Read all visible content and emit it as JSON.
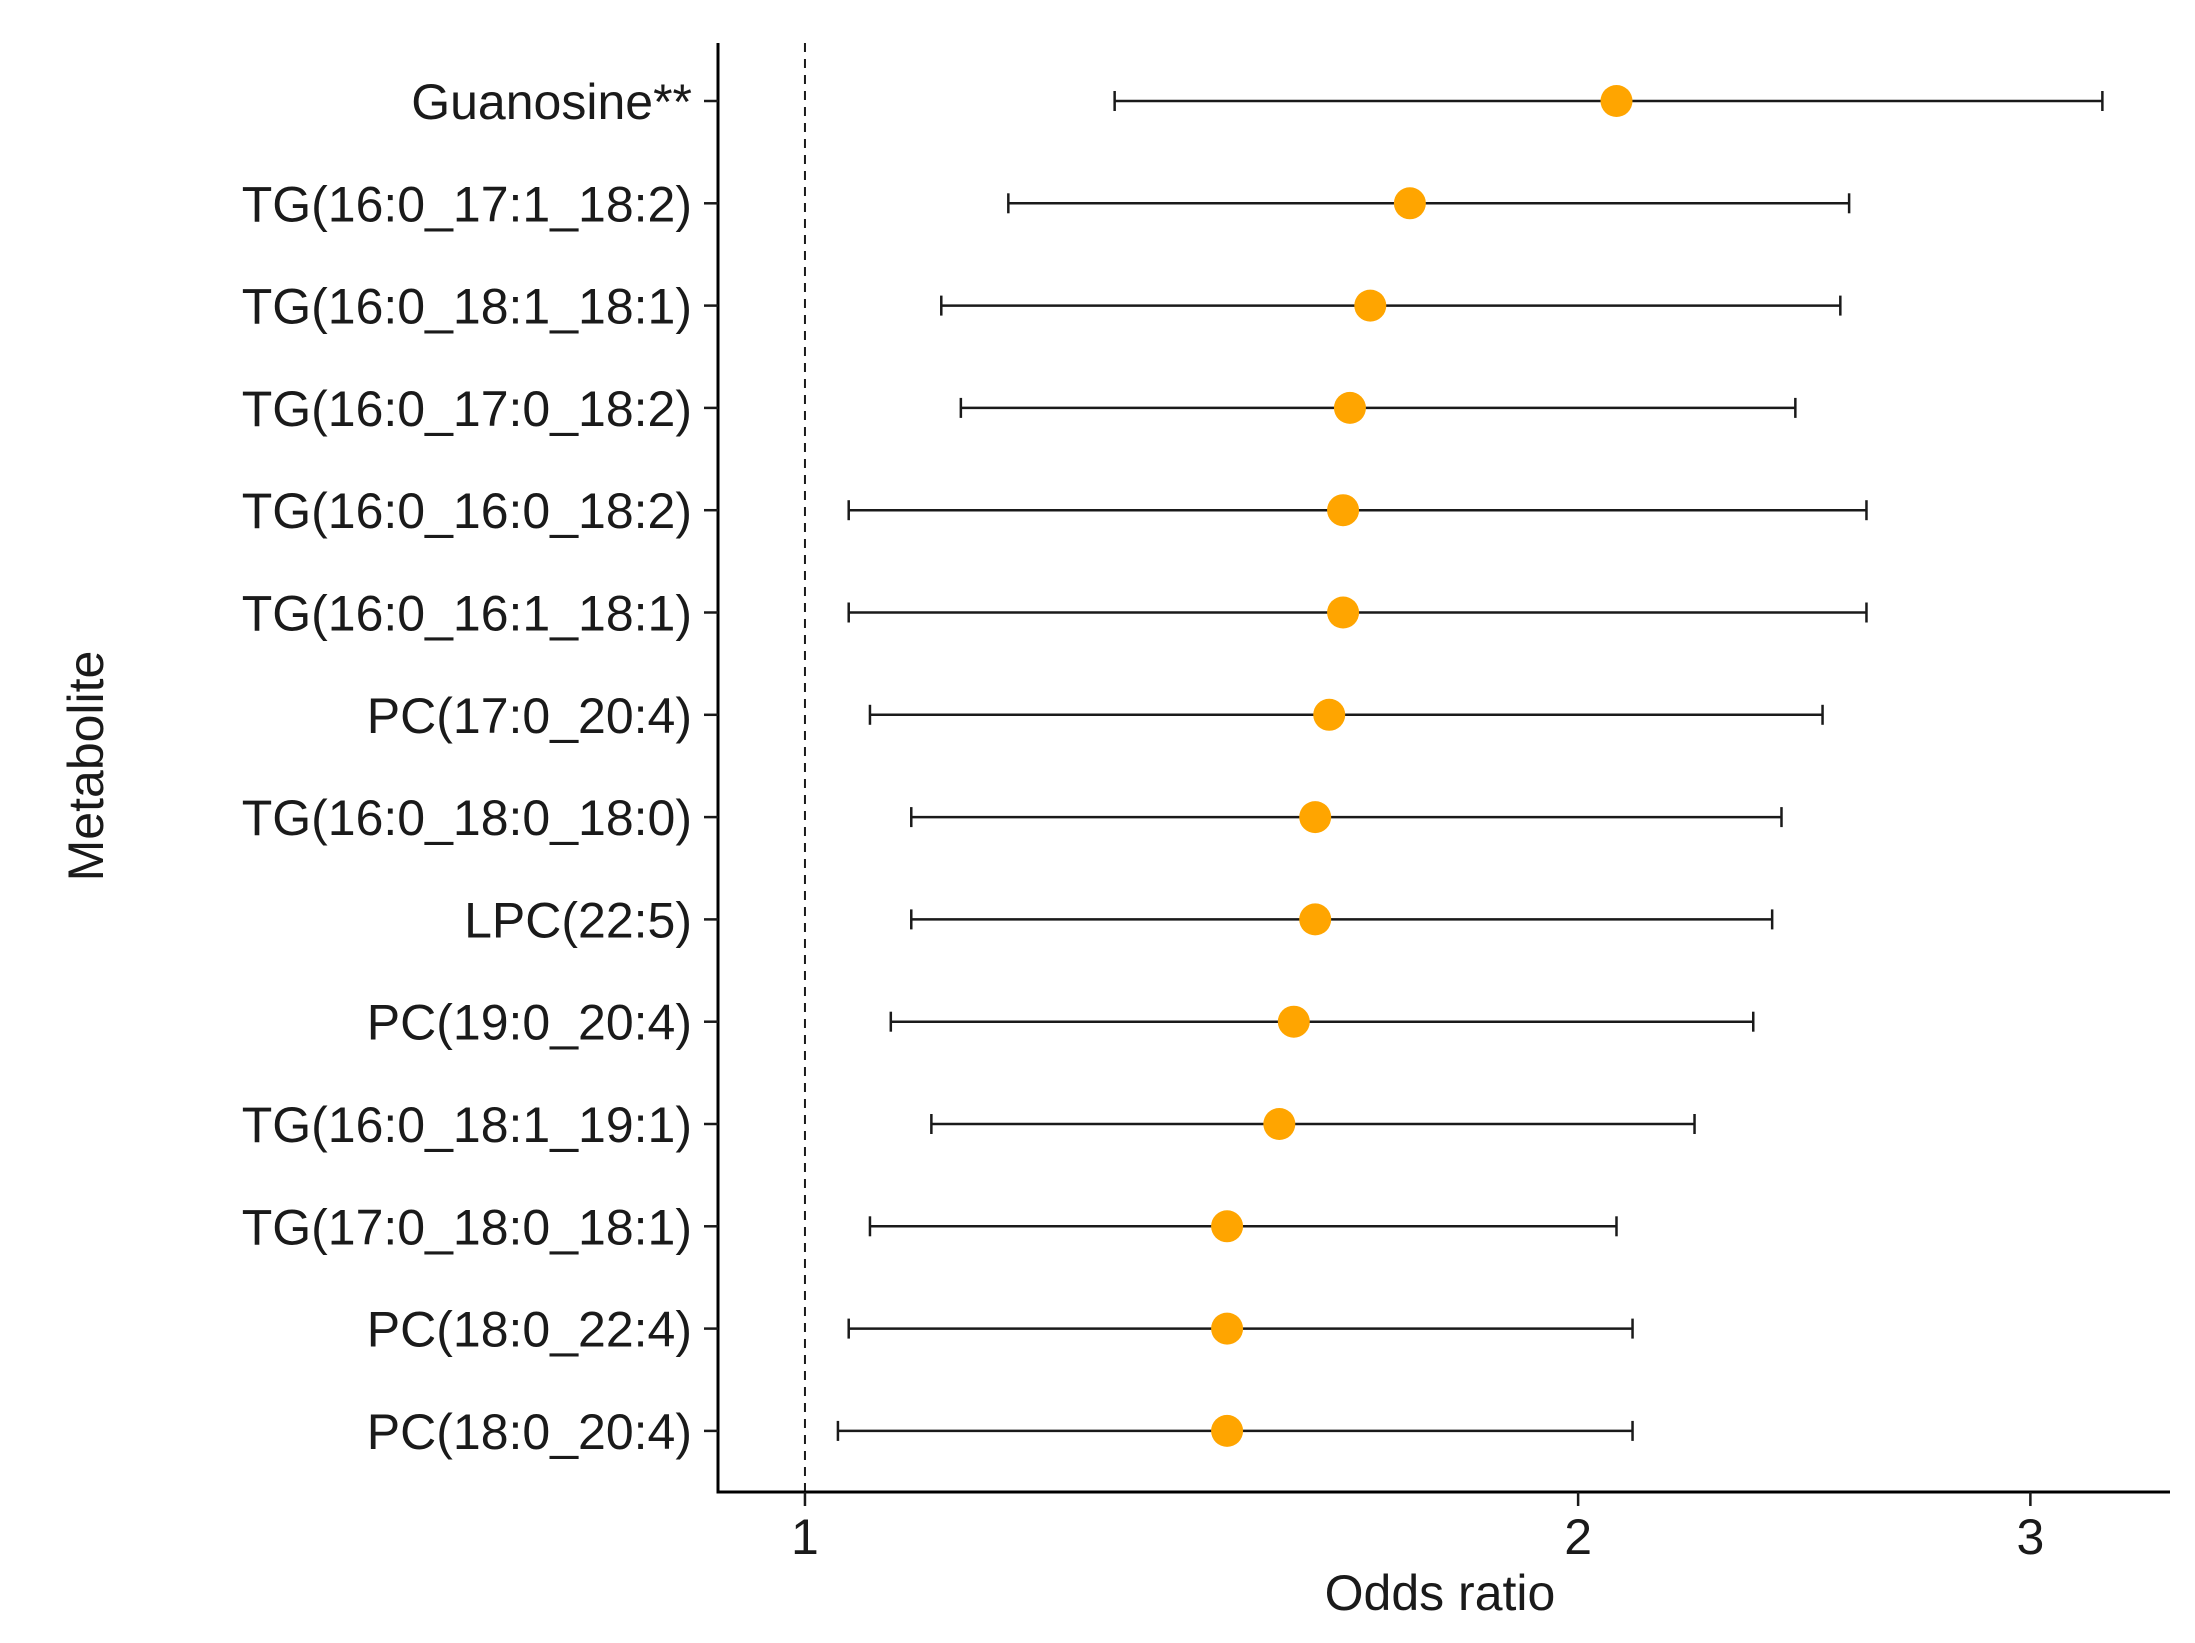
{
  "chart_data": {
    "type": "forest",
    "title": "",
    "xlabel": "Odds ratio",
    "ylabel": "Metabolite",
    "x_scale": "log",
    "xlim": [
      0.925,
      3.4
    ],
    "x_ticks": [
      1,
      2,
      3
    ],
    "x_tick_labels": [
      "1",
      "2",
      "3"
    ],
    "reference_line": 1,
    "point_color": "#FFA500",
    "rows": [
      {
        "label": "Guanosine**",
        "or": 2.07,
        "lower": 1.32,
        "upper": 3.2
      },
      {
        "label": "TG(16:0_17:1_18:2)",
        "or": 1.72,
        "lower": 1.2,
        "upper": 2.55
      },
      {
        "label": "TG(16:0_18:1_18:1)",
        "or": 1.66,
        "lower": 1.13,
        "upper": 2.53
      },
      {
        "label": "TG(16:0_17:0_18:2)",
        "or": 1.63,
        "lower": 1.15,
        "upper": 2.43
      },
      {
        "label": "TG(16:0_16:0_18:2)",
        "or": 1.62,
        "lower": 1.04,
        "upper": 2.59
      },
      {
        "label": "TG(16:0_16:1_18:1)",
        "or": 1.62,
        "lower": 1.04,
        "upper": 2.59
      },
      {
        "label": "PC(17:0_20:4)",
        "or": 1.6,
        "lower": 1.06,
        "upper": 2.49
      },
      {
        "label": "TG(16:0_18:0_18:0)",
        "or": 1.58,
        "lower": 1.1,
        "upper": 2.4
      },
      {
        "label": "LPC(22:5)",
        "or": 1.58,
        "lower": 1.1,
        "upper": 2.38
      },
      {
        "label": "PC(19:0_20:4)",
        "or": 1.55,
        "lower": 1.08,
        "upper": 2.34
      },
      {
        "label": "TG(16:0_18:1_19:1)",
        "or": 1.53,
        "lower": 1.12,
        "upper": 2.22
      },
      {
        "label": "TG(17:0_18:0_18:1)",
        "or": 1.46,
        "lower": 1.06,
        "upper": 2.07
      },
      {
        "label": "PC(18:0_22:4)",
        "or": 1.46,
        "lower": 1.04,
        "upper": 2.1
      },
      {
        "label": "PC(18:0_20:4)",
        "or": 1.46,
        "lower": 1.03,
        "upper": 2.1
      }
    ]
  }
}
